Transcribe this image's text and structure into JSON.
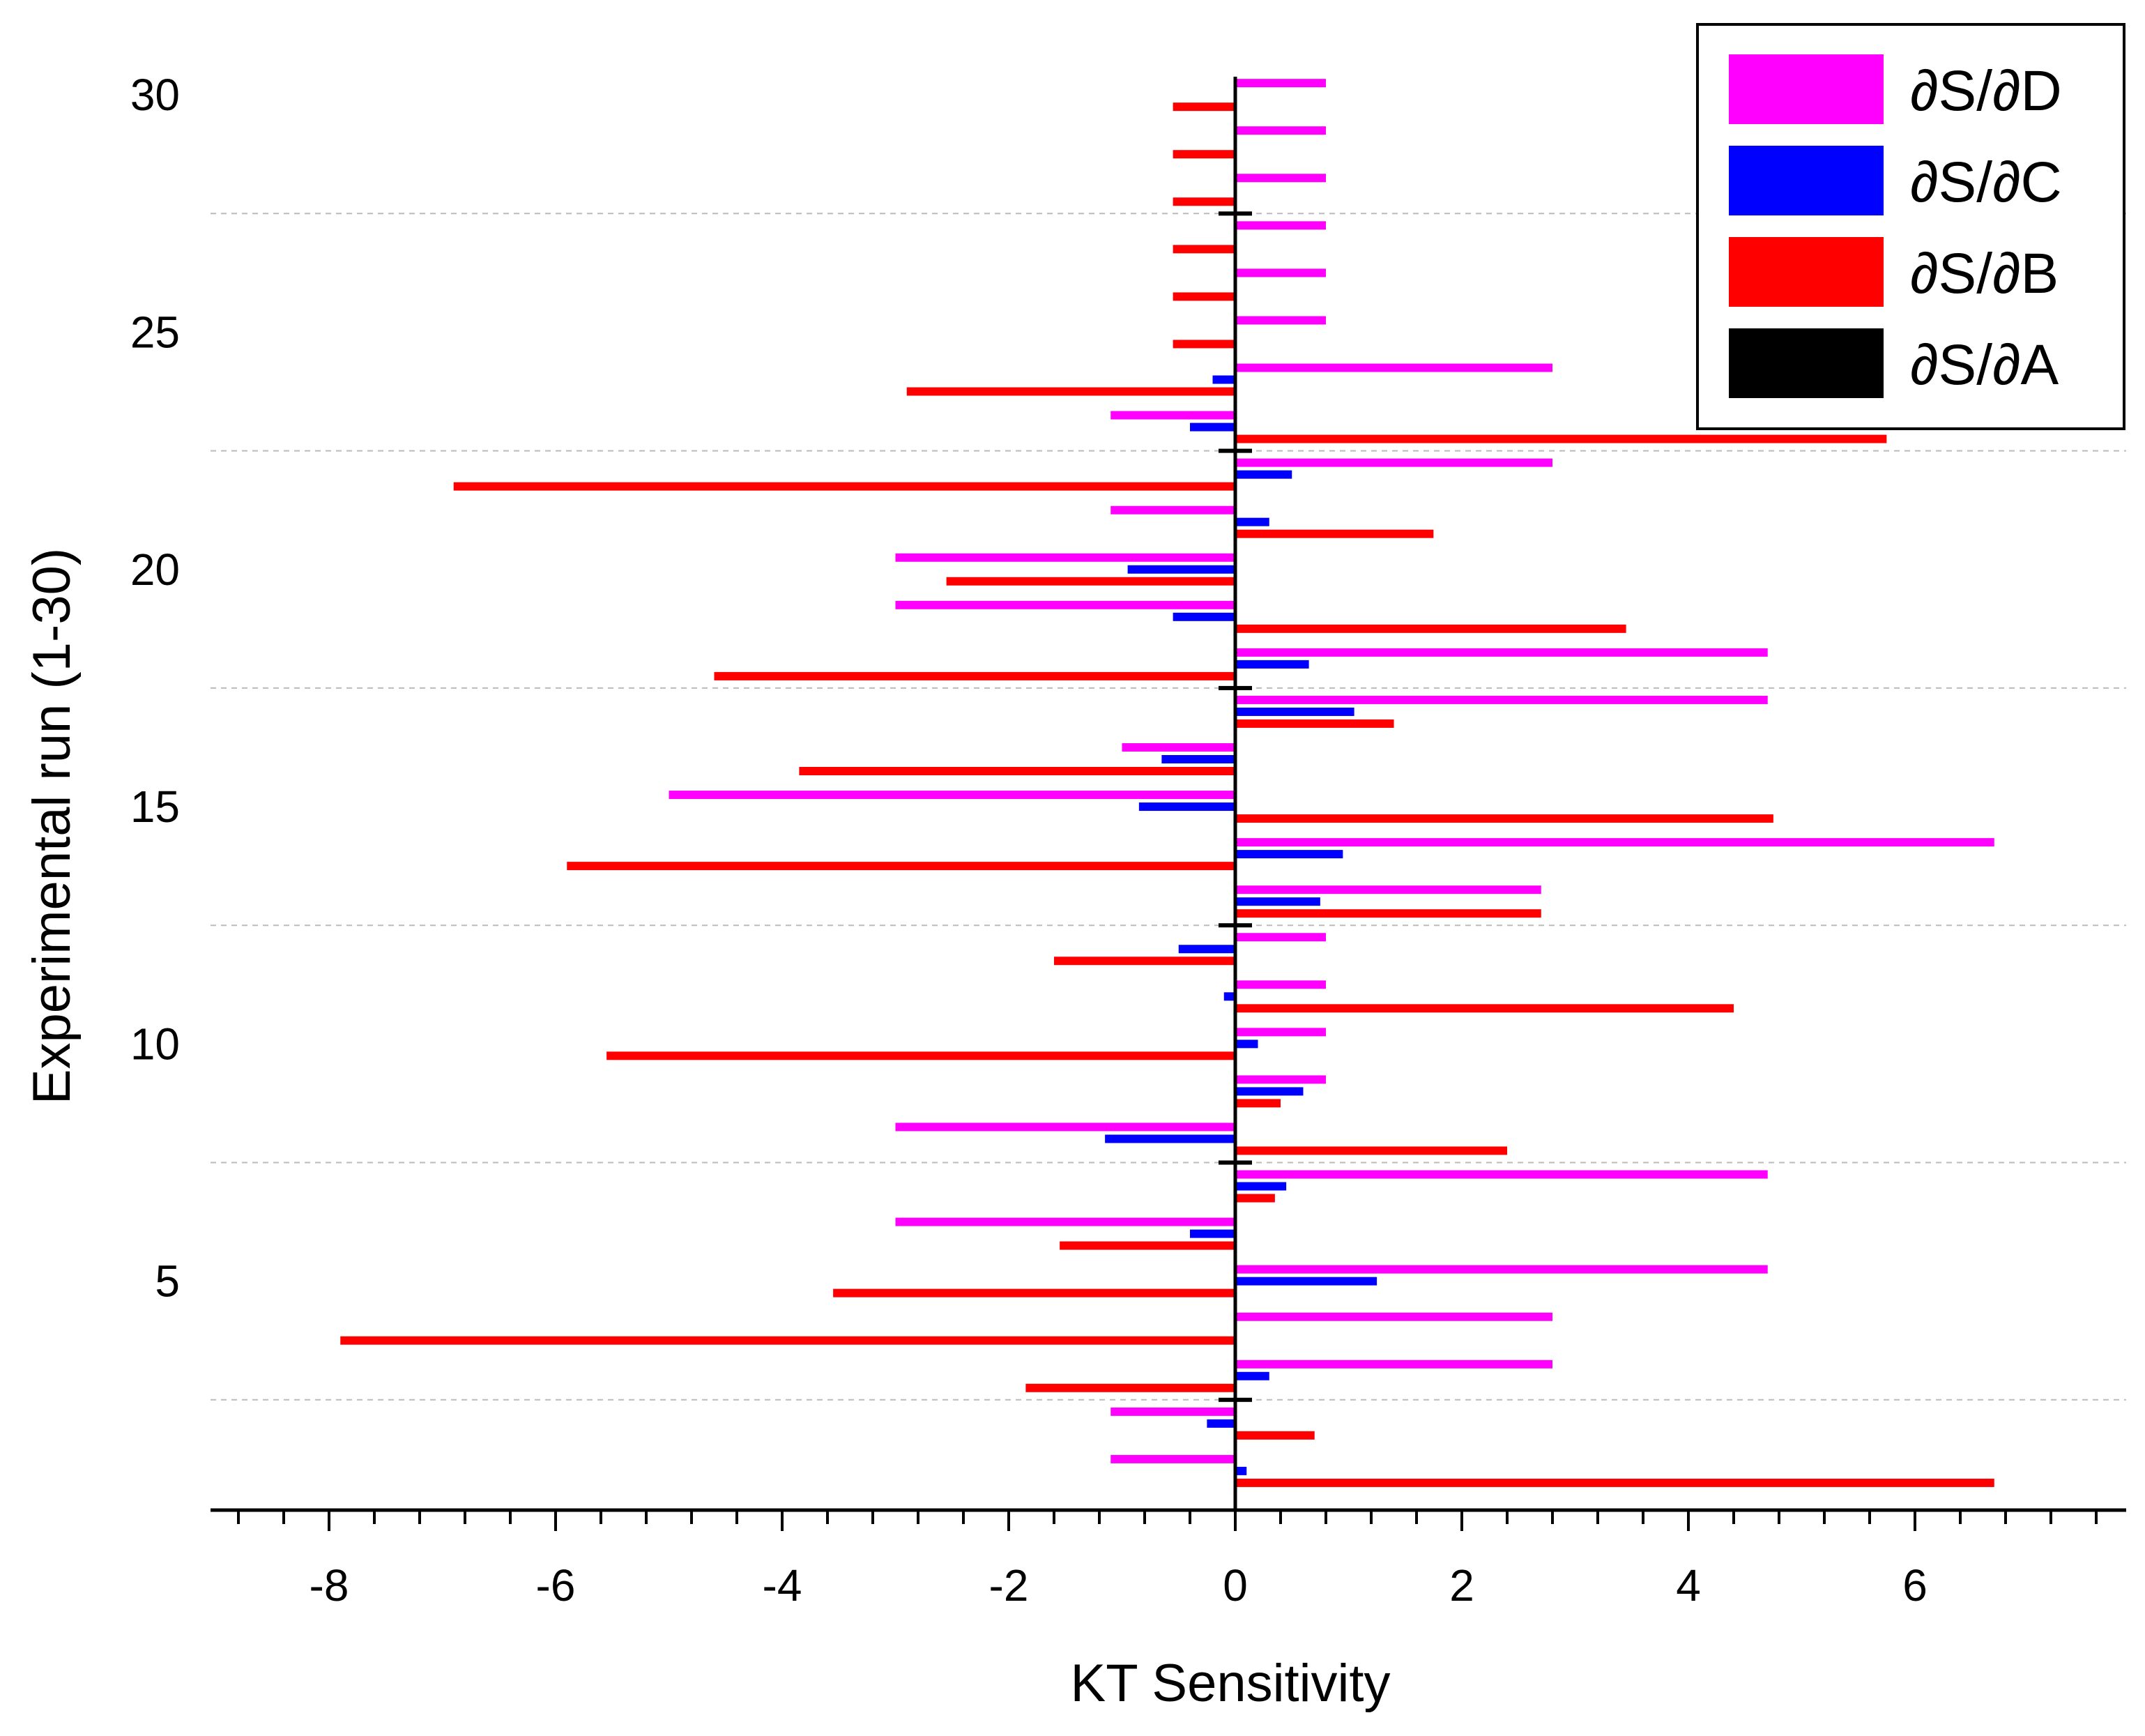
{
  "chart_data": {
    "type": "bar",
    "orientation": "horizontal",
    "xlabel": "KT Sensitivity",
    "ylabel": "Experimental run (1-30)",
    "xlim": [
      -9,
      7.8
    ],
    "ylim": [
      0.5,
      30.5
    ],
    "xticks": [
      -8,
      -6,
      -4,
      -2,
      0,
      2,
      4,
      6
    ],
    "xtick_labels": [
      "-8",
      "-6",
      "-4",
      "-2",
      "0",
      "2",
      "4",
      "6"
    ],
    "xminor_step": 0.4,
    "yticks": [
      5,
      10,
      15,
      20,
      25,
      30
    ],
    "ytick_labels": [
      "5",
      "10",
      "15",
      "20",
      "25",
      "30"
    ],
    "gridlines_y": [
      2.5,
      7.5,
      12.5,
      17.5,
      22.5,
      27.5
    ],
    "legend_position": "top-right",
    "runs": [
      1,
      2,
      3,
      4,
      5,
      6,
      7,
      8,
      9,
      10,
      11,
      12,
      13,
      14,
      15,
      16,
      17,
      18,
      19,
      20,
      21,
      22,
      23,
      24,
      25,
      26,
      27,
      28,
      29,
      30
    ],
    "series": [
      {
        "name": "∂S/∂D",
        "color": "#FF00FF",
        "values": [
          -1.1,
          -1.1,
          2.8,
          2.8,
          4.7,
          -3.0,
          4.7,
          -3.0,
          0.8,
          0.8,
          0.8,
          0.8,
          2.7,
          6.7,
          -5.0,
          -1.0,
          4.7,
          4.7,
          -3.0,
          -3.0,
          -1.1,
          2.8,
          -1.1,
          2.8,
          0.8,
          0.8,
          0.8,
          0.8,
          0.8,
          0.8
        ]
      },
      {
        "name": "∂S/∂C",
        "color": "#0000FF",
        "values": [
          0.1,
          -0.25,
          0.3,
          0.0,
          1.25,
          -0.4,
          0.45,
          -1.15,
          0.6,
          0.2,
          -0.1,
          -0.5,
          0.75,
          0.95,
          -0.85,
          -0.65,
          1.05,
          0.65,
          -0.55,
          -0.95,
          0.3,
          0.5,
          -0.4,
          -0.2,
          0.0,
          0.0,
          0.0,
          0.0,
          0.0,
          0.0
        ]
      },
      {
        "name": "∂S/∂B",
        "color": "#FF0000",
        "values": [
          6.7,
          0.7,
          -1.85,
          -7.9,
          -3.55,
          -1.55,
          0.35,
          2.4,
          0.4,
          -5.55,
          4.4,
          -1.6,
          2.7,
          -5.9,
          4.75,
          -3.85,
          1.4,
          -4.6,
          3.45,
          -2.55,
          1.75,
          -6.9,
          5.75,
          -2.9,
          -0.55,
          -0.55,
          -0.55,
          -0.55,
          -0.55,
          -0.55
        ]
      },
      {
        "name": "∂S/∂A",
        "color": "#000000",
        "values": [
          0,
          0,
          0,
          0,
          0,
          0,
          0,
          0,
          0,
          0,
          0,
          0,
          0,
          0,
          0,
          0,
          0,
          0,
          0,
          0,
          0,
          0,
          0,
          0,
          0,
          0,
          0,
          0,
          0,
          0
        ],
        "markers_at_runs": [
          2.5,
          7.5,
          12.5,
          17.5,
          22.5,
          27.5
        ]
      }
    ]
  }
}
